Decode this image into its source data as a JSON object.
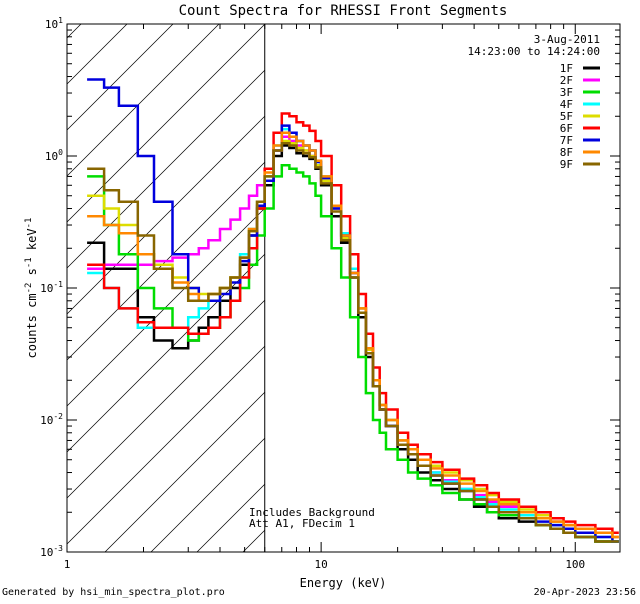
{
  "chart_data": {
    "type": "line",
    "title": "Count Spectra for RHESSI Front Segments",
    "xlabel": "Energy (keV)",
    "ylabel_parts": {
      "main": "counts cm",
      "exp1": "-2",
      "mid1": " s",
      "exp2": "-1",
      "mid2": " keV",
      "exp3": "-1"
    },
    "x_scale": "log",
    "y_scale": "log",
    "xlim": [
      1,
      150
    ],
    "ylim": [
      0.001,
      10
    ],
    "x_ticks": [
      {
        "value": 1,
        "label": "1"
      },
      {
        "value": 10,
        "label": "10"
      },
      {
        "value": 100,
        "label": "100"
      }
    ],
    "y_ticks": [
      {
        "value": 0.001,
        "base": "10",
        "exp": "-3"
      },
      {
        "value": 0.01,
        "base": "10",
        "exp": "-2"
      },
      {
        "value": 0.1,
        "base": "10",
        "exp": "-1"
      },
      {
        "value": 1,
        "base": "10",
        "exp": "0"
      },
      {
        "value": 10,
        "base": "10",
        "exp": "1"
      }
    ],
    "threshold_energy": 6,
    "date": "3-Aug-2011",
    "time_range": "14:23:00 to 14:24:00",
    "annotations": [
      "Includes Background",
      "Att A1, FDecim 1"
    ],
    "footer_left": "Generated by hsi_min_spectra_plot.pro",
    "footer_right": "20-Apr-2023 23:56",
    "energies": [
      1.2,
      1.4,
      1.6,
      1.9,
      2.2,
      2.6,
      3.0,
      3.3,
      3.6,
      4.0,
      4.4,
      4.8,
      5.2,
      5.6,
      6.0,
      6.5,
      7.0,
      7.5,
      8.0,
      8.5,
      9.0,
      9.5,
      10,
      11,
      12,
      13,
      14,
      15,
      16,
      17,
      18,
      20,
      22,
      24,
      27,
      30,
      35,
      40,
      45,
      50,
      60,
      70,
      80,
      90,
      100,
      120,
      140
    ],
    "series": [
      {
        "name": "1F",
        "color": "#000000",
        "values": [
          0.22,
          0.14,
          0.14,
          0.06,
          0.04,
          0.035,
          0.04,
          0.05,
          0.06,
          0.08,
          0.1,
          0.15,
          0.25,
          0.4,
          0.6,
          1.0,
          1.2,
          1.15,
          1.05,
          1.0,
          0.95,
          0.8,
          0.6,
          0.35,
          0.22,
          0.12,
          0.06,
          0.03,
          0.018,
          0.012,
          0.009,
          0.006,
          0.005,
          0.004,
          0.0035,
          0.003,
          0.0025,
          0.0022,
          0.002,
          0.0018,
          0.0017,
          0.0016,
          0.0015,
          0.0014,
          0.0013,
          0.0012,
          0.0012
        ]
      },
      {
        "name": "2F",
        "color": "#ff00ff",
        "values": [
          0.14,
          0.15,
          0.15,
          0.15,
          0.16,
          0.17,
          0.18,
          0.2,
          0.23,
          0.28,
          0.33,
          0.4,
          0.5,
          0.6,
          0.8,
          1.1,
          1.4,
          1.3,
          1.2,
          1.1,
          1.0,
          0.85,
          0.65,
          0.4,
          0.24,
          0.13,
          0.07,
          0.035,
          0.02,
          0.013,
          0.01,
          0.007,
          0.006,
          0.005,
          0.004,
          0.0035,
          0.003,
          0.0027,
          0.0024,
          0.0022,
          0.002,
          0.0019,
          0.0017,
          0.0016,
          0.0015,
          0.0014,
          0.0013
        ]
      },
      {
        "name": "3F",
        "color": "#00dd00",
        "values": [
          0.7,
          0.3,
          0.18,
          0.1,
          0.07,
          0.05,
          0.04,
          0.045,
          0.05,
          0.06,
          0.08,
          0.1,
          0.15,
          0.25,
          0.4,
          0.7,
          0.85,
          0.8,
          0.75,
          0.7,
          0.62,
          0.5,
          0.35,
          0.2,
          0.12,
          0.06,
          0.03,
          0.016,
          0.01,
          0.008,
          0.006,
          0.005,
          0.004,
          0.0036,
          0.0032,
          0.0028,
          0.0025,
          0.0023,
          0.002,
          0.0019,
          0.0018,
          0.0016,
          0.0015,
          0.0014,
          0.0013,
          0.0012,
          0.0012
        ]
      },
      {
        "name": "4F",
        "color": "#00ffff",
        "values": [
          0.13,
          0.1,
          0.07,
          0.05,
          0.05,
          0.05,
          0.06,
          0.07,
          0.08,
          0.1,
          0.12,
          0.18,
          0.28,
          0.45,
          0.7,
          1.2,
          1.6,
          1.5,
          1.3,
          1.2,
          1.1,
          0.9,
          0.7,
          0.42,
          0.26,
          0.14,
          0.07,
          0.035,
          0.02,
          0.013,
          0.01,
          0.007,
          0.006,
          0.005,
          0.004,
          0.0034,
          0.003,
          0.0026,
          0.0023,
          0.0021,
          0.0019,
          0.0018,
          0.0016,
          0.0015,
          0.0014,
          0.0013,
          0.0012
        ]
      },
      {
        "name": "5F",
        "color": "#dddd00",
        "values": [
          0.5,
          0.4,
          0.3,
          0.18,
          0.15,
          0.12,
          0.1,
          0.09,
          0.09,
          0.1,
          0.12,
          0.17,
          0.27,
          0.45,
          0.7,
          1.1,
          1.3,
          1.25,
          1.15,
          1.1,
          1.0,
          0.85,
          0.65,
          0.4,
          0.24,
          0.13,
          0.07,
          0.034,
          0.02,
          0.013,
          0.01,
          0.007,
          0.006,
          0.005,
          0.0045,
          0.004,
          0.0035,
          0.003,
          0.0027,
          0.0024,
          0.0021,
          0.0019,
          0.0017,
          0.0016,
          0.0015,
          0.0014,
          0.0013
        ]
      },
      {
        "name": "6F",
        "color": "#ff0000",
        "values": [
          0.15,
          0.1,
          0.07,
          0.055,
          0.05,
          0.05,
          0.045,
          0.045,
          0.05,
          0.06,
          0.08,
          0.12,
          0.2,
          0.4,
          0.8,
          1.5,
          2.1,
          2.0,
          1.8,
          1.7,
          1.55,
          1.3,
          1.0,
          0.6,
          0.35,
          0.18,
          0.09,
          0.045,
          0.025,
          0.016,
          0.012,
          0.008,
          0.0065,
          0.0055,
          0.0048,
          0.0042,
          0.0036,
          0.0032,
          0.0028,
          0.0025,
          0.0022,
          0.002,
          0.0018,
          0.0017,
          0.0016,
          0.0015,
          0.0014
        ]
      },
      {
        "name": "7F",
        "color": "#0000dd",
        "values": [
          3.8,
          3.3,
          2.4,
          1.0,
          0.45,
          0.18,
          0.1,
          0.08,
          0.08,
          0.09,
          0.11,
          0.16,
          0.25,
          0.42,
          0.65,
          1.1,
          1.7,
          1.5,
          1.3,
          1.2,
          1.1,
          0.9,
          0.68,
          0.4,
          0.25,
          0.13,
          0.065,
          0.032,
          0.018,
          0.012,
          0.009,
          0.0065,
          0.0055,
          0.0045,
          0.0038,
          0.0033,
          0.0029,
          0.0025,
          0.0022,
          0.002,
          0.0018,
          0.0017,
          0.0016,
          0.0015,
          0.0014,
          0.0013,
          0.0012
        ]
      },
      {
        "name": "8F",
        "color": "#ff8800",
        "values": [
          0.35,
          0.3,
          0.26,
          0.18,
          0.14,
          0.11,
          0.09,
          0.08,
          0.09,
          0.1,
          0.12,
          0.17,
          0.28,
          0.45,
          0.75,
          1.2,
          1.5,
          1.4,
          1.3,
          1.2,
          1.1,
          0.92,
          0.7,
          0.42,
          0.25,
          0.13,
          0.07,
          0.035,
          0.02,
          0.013,
          0.01,
          0.007,
          0.006,
          0.005,
          0.0043,
          0.0038,
          0.0033,
          0.0029,
          0.0025,
          0.0023,
          0.002,
          0.0018,
          0.0017,
          0.0016,
          0.0015,
          0.0014,
          0.0013
        ]
      },
      {
        "name": "9F",
        "color": "#886600",
        "values": [
          0.8,
          0.55,
          0.45,
          0.25,
          0.14,
          0.1,
          0.08,
          0.08,
          0.09,
          0.1,
          0.12,
          0.17,
          0.27,
          0.45,
          0.7,
          1.1,
          1.25,
          1.2,
          1.1,
          1.05,
          0.98,
          0.82,
          0.62,
          0.38,
          0.23,
          0.12,
          0.065,
          0.032,
          0.018,
          0.012,
          0.009,
          0.0065,
          0.0055,
          0.0045,
          0.0038,
          0.0033,
          0.0029,
          0.0025,
          0.0022,
          0.002,
          0.0018,
          0.0016,
          0.0015,
          0.0014,
          0.0013,
          0.0012,
          0.0012
        ]
      }
    ]
  }
}
